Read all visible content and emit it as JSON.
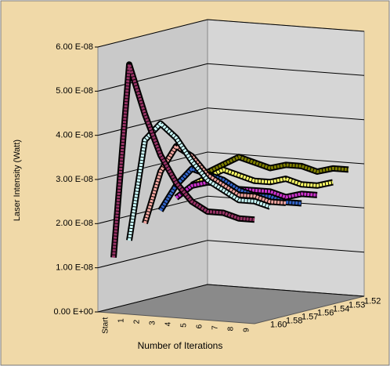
{
  "chart_data": {
    "type": "line3d",
    "y_label": "Laser Intensity (Watt)",
    "x_label": "Number of Iterations",
    "categories": [
      "Start",
      "1",
      "2",
      "3",
      "4",
      "5",
      "6",
      "7",
      "8",
      "9"
    ],
    "ylim": [
      0,
      6e-08
    ],
    "yticks": [
      {
        "value": 0,
        "label": "0.00 E+00"
      },
      {
        "value": 1e-08,
        "label": "1.00 E-08"
      },
      {
        "value": 2e-08,
        "label": "2.00 E-08"
      },
      {
        "value": 3e-08,
        "label": "3.00 E-08"
      },
      {
        "value": 4e-08,
        "label": "4.00 E-08"
      },
      {
        "value": 5e-08,
        "label": "5.00 E-08"
      },
      {
        "value": 6e-08,
        "label": "6.00 E-08"
      }
    ],
    "grid": true,
    "series": [
      {
        "name": "1.52",
        "color": "#808000",
        "values": [
          2.6e-08,
          2.8e-08,
          3e-08,
          2.9e-08,
          2.8e-08,
          2.9e-08,
          2.9e-08,
          2.8e-08,
          2.9e-08,
          2.9e-08
        ]
      },
      {
        "name": "1.53",
        "color": "#ffff66",
        "values": [
          2.4e-08,
          2.6e-08,
          2.8e-08,
          2.7e-08,
          2.6e-08,
          2.6e-08,
          2.7e-08,
          2.6e-08,
          2.6e-08,
          2.7e-08
        ]
      },
      {
        "name": "1.54",
        "color": "#cc33cc",
        "values": [
          2.2e-08,
          2.5e-08,
          2.6e-08,
          2.6e-08,
          2.5e-08,
          2.5e-08,
          2.5e-08,
          2.4e-08,
          2.5e-08,
          2.5e-08
        ]
      },
      {
        "name": "1.56",
        "color": "#3366cc",
        "values": [
          2e-08,
          2.6e-08,
          3e-08,
          2.9e-08,
          2.8e-08,
          2.6e-08,
          2.5e-08,
          2.5e-08,
          2.4e-08,
          2.4e-08
        ]
      },
      {
        "name": "1.57",
        "color": "#f4a6a0",
        "values": [
          1.8e-08,
          3e-08,
          3.6e-08,
          3.4e-08,
          3e-08,
          2.8e-08,
          2.6e-08,
          2.6e-08,
          2.5e-08,
          2.5e-08
        ]
      },
      {
        "name": "1.58",
        "color": "#ccffff",
        "values": [
          1.5e-08,
          3.8e-08,
          4.2e-08,
          3.9e-08,
          3.4e-08,
          3e-08,
          2.8e-08,
          2.6e-08,
          2.6e-08,
          2.5e-08
        ]
      },
      {
        "name": "1.60",
        "color": "#993366",
        "values": [
          1.2e-08,
          5.6e-08,
          4.5e-08,
          3.6e-08,
          3e-08,
          2.6e-08,
          2.4e-08,
          2.4e-08,
          2.3e-08,
          2.3e-08
        ]
      }
    ]
  }
}
